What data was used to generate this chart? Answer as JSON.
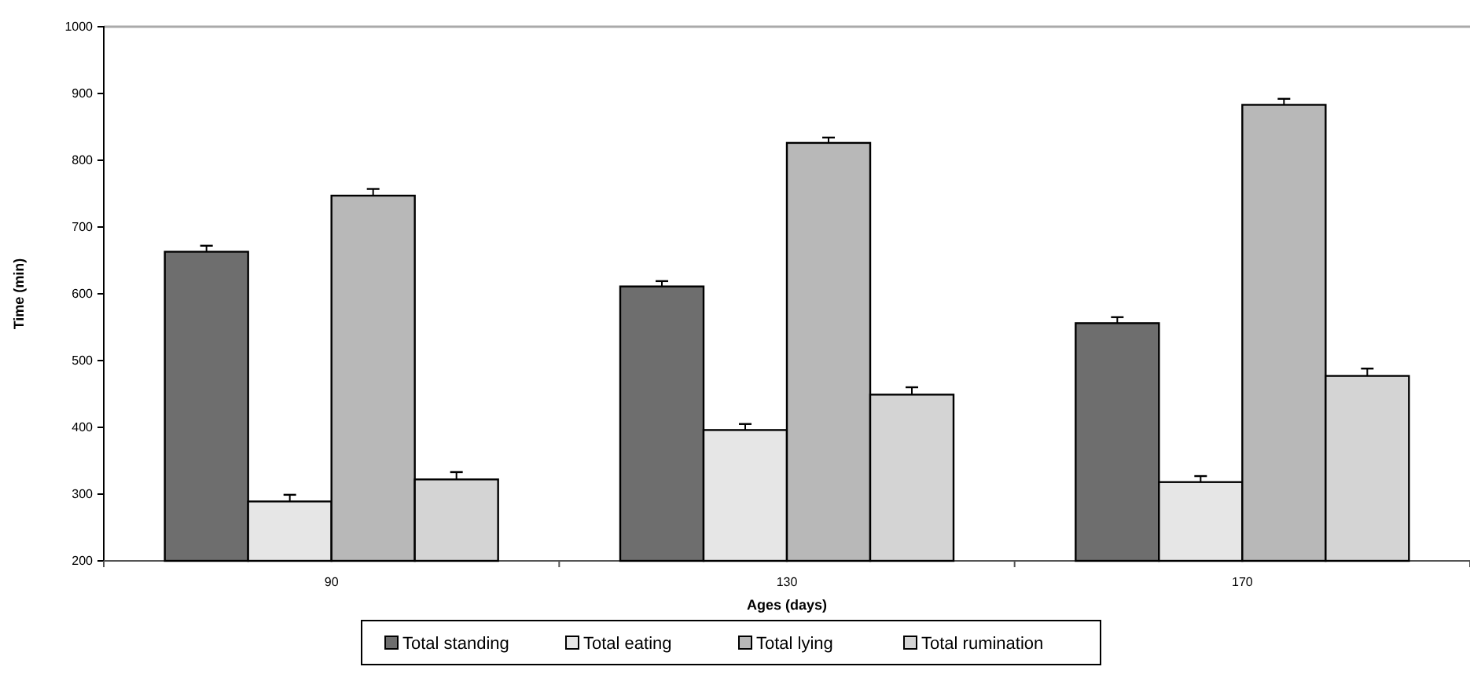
{
  "chart_data": {
    "type": "bar",
    "xlabel": "Ages (days)",
    "ylabel": "Time (min)",
    "categories": [
      "90",
      "130",
      "170"
    ],
    "series": [
      {
        "name": "Total standing",
        "color": "#6e6e6e",
        "values": [
          663,
          611,
          556
        ],
        "errors": [
          9,
          8,
          9
        ]
      },
      {
        "name": "Total eating",
        "color": "#e6e6e6",
        "values": [
          289,
          396,
          318
        ],
        "errors": [
          10,
          9,
          9
        ]
      },
      {
        "name": "Total lying",
        "color": "#b8b8b8",
        "values": [
          747,
          826,
          883
        ],
        "errors": [
          10,
          8,
          9
        ]
      },
      {
        "name": "Total rumination",
        "color": "#d4d4d4",
        "values": [
          322,
          449,
          477
        ],
        "errors": [
          11,
          11,
          11
        ]
      }
    ],
    "ylim": [
      200,
      1000
    ],
    "yticks": [
      200,
      300,
      400,
      500,
      600,
      700,
      800,
      900,
      1000
    ],
    "legend": "bottom"
  }
}
